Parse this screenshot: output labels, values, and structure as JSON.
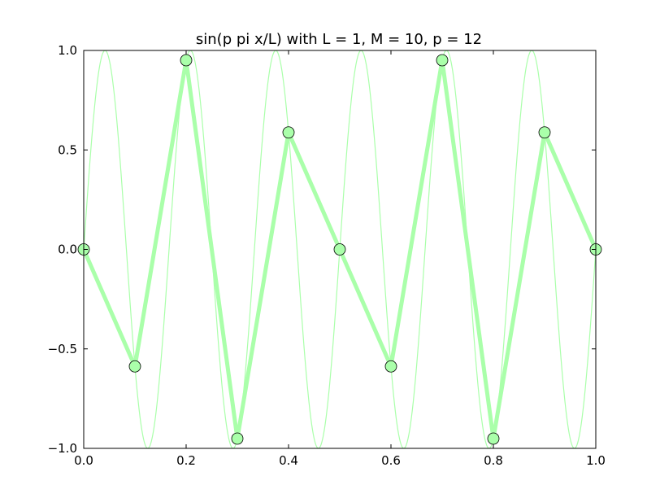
{
  "chart_data": {
    "type": "line",
    "title": "sin(p pi x/L) with L = 1, M = 10, p = 12",
    "xlabel": "",
    "ylabel": "",
    "xlim": [
      0.0,
      1.0
    ],
    "ylim": [
      -1.0,
      1.0
    ],
    "grid": false,
    "x_ticks": [
      "0.0",
      "0.2",
      "0.4",
      "0.6",
      "0.8",
      "1.0"
    ],
    "y_ticks": [
      "1.0",
      "0.5",
      "0.0",
      "−0.5",
      "−1.0"
    ],
    "x_tick_values": [
      0.0,
      0.2,
      0.4,
      0.6,
      0.8,
      1.0
    ],
    "y_tick_values": [
      1.0,
      0.5,
      0.0,
      -0.5,
      -1.0
    ],
    "series": [
      {
        "style": "thin continuous curve",
        "formula": "sin(12*pi*x)",
        "color": "#aaffaa"
      },
      {
        "style": "thick line with circle markers",
        "color": "#aaffaa",
        "marker_color": "#aaffaa",
        "x": [
          0.0,
          0.1,
          0.2,
          0.3,
          0.4,
          0.5,
          0.6,
          0.7,
          0.8,
          0.9,
          1.0
        ],
        "y": [
          0.0,
          -0.588,
          0.951,
          -0.951,
          0.588,
          0.0,
          -0.588,
          0.951,
          -0.951,
          0.588,
          0.0
        ]
      }
    ]
  }
}
